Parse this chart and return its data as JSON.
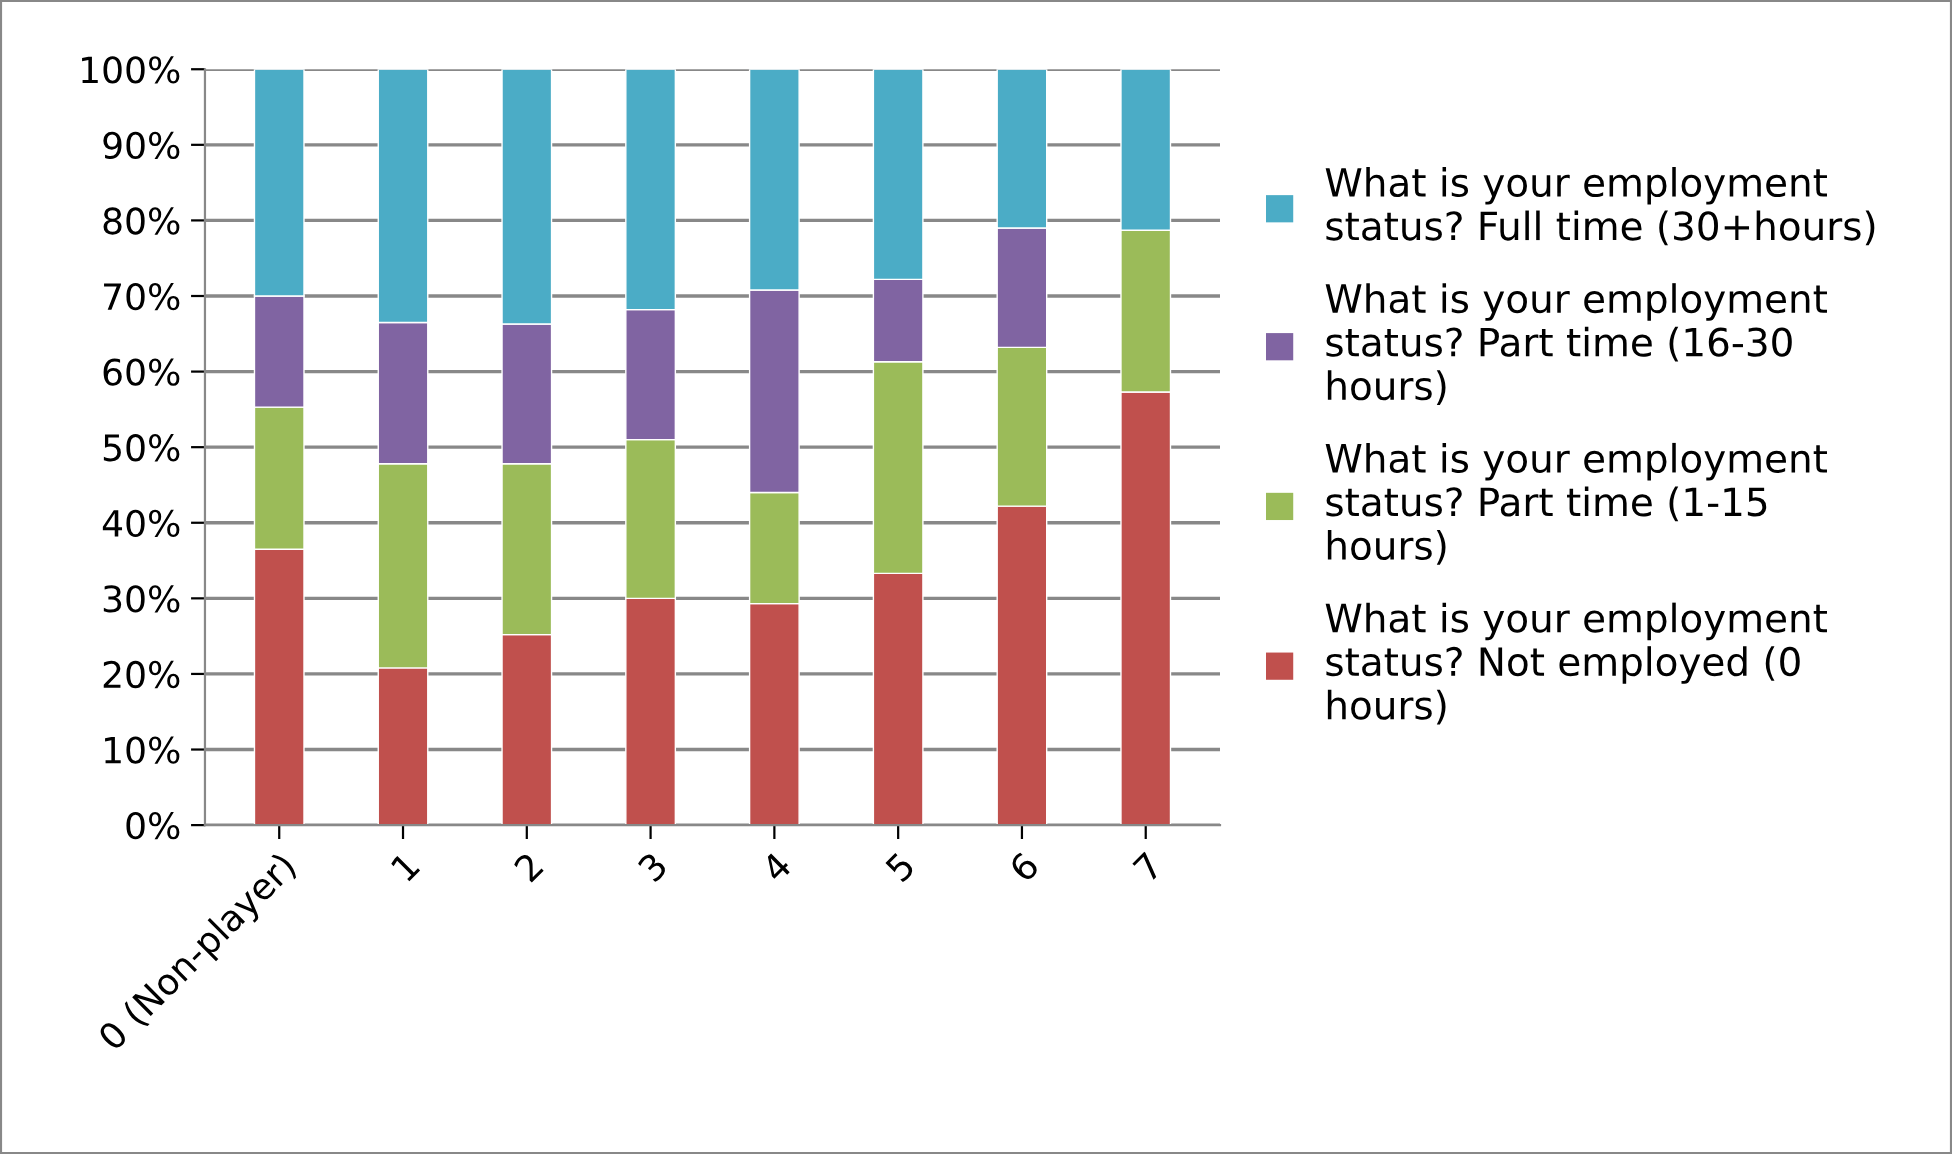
{
  "chart_data": {
    "type": "bar",
    "stacked": true,
    "categories": [
      "0 (Non-player)",
      "1",
      "2",
      "3",
      "4",
      "5",
      "6",
      "7"
    ],
    "series": [
      {
        "name": "What is your employment status? Not employed (0 hours)",
        "color": "#c0504d",
        "values": [
          36.5,
          20.8,
          25.2,
          30,
          29.3,
          33.3,
          42.2,
          57.3
        ]
      },
      {
        "name": "What is your employment status? Part time (1-15 hours)",
        "color": "#9bbb59",
        "values": [
          18.8,
          27,
          22.6,
          21,
          14.7,
          28,
          21,
          21.4
        ]
      },
      {
        "name": "What is your employment status? Part time (16-30 hours)",
        "color": "#8064a2",
        "values": [
          14.7,
          18.7,
          18.5,
          17.2,
          26.8,
          10.9,
          15.8,
          0
        ]
      },
      {
        "name": "What is your employment status? Full time (30+hours)",
        "color": "#4bacc6",
        "values": [
          30,
          33.5,
          33.7,
          31.8,
          29.2,
          27.8,
          21,
          21.3
        ]
      }
    ],
    "ylim": [
      0,
      100
    ],
    "yticks": [
      {
        "value": 0,
        "label": "0%"
      },
      {
        "value": 10,
        "label": "10%"
      },
      {
        "value": 20,
        "label": "20%"
      },
      {
        "value": 30,
        "label": "30%"
      },
      {
        "value": 40,
        "label": "40%"
      },
      {
        "value": 50,
        "label": "50%"
      },
      {
        "value": 60,
        "label": "60%"
      },
      {
        "value": 70,
        "label": "70%"
      },
      {
        "value": 80,
        "label": "80%"
      },
      {
        "value": 90,
        "label": "90%"
      },
      {
        "value": 100,
        "label": "100%"
      }
    ],
    "grid": "y",
    "legend": "right"
  }
}
